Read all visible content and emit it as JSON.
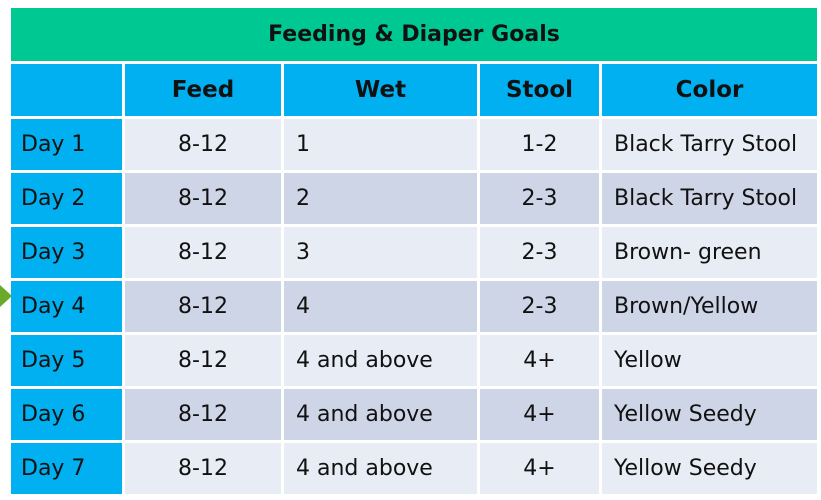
{
  "table": {
    "title": "Feeding & Diaper Goals",
    "headers": [
      "",
      "Feed",
      "Wet",
      "Stool",
      "Color"
    ],
    "rows": [
      {
        "day": "Day 1",
        "feed": "8-12",
        "wet": "1",
        "stool": "1-2",
        "color": "Black Tarry Stool"
      },
      {
        "day": "Day 2",
        "feed": "8-12",
        "wet": "2",
        "stool": "2-3",
        "color": "Black Tarry Stool"
      },
      {
        "day": "Day 3",
        "feed": "8-12",
        "wet": "3",
        "stool": "2-3",
        "color": "Brown- green"
      },
      {
        "day": "Day 4",
        "feed": "8-12",
        "wet": "4",
        "stool": "2-3",
        "color": "Brown/Yellow"
      },
      {
        "day": "Day 5",
        "feed": "8-12",
        "wet": "4 and above",
        "stool": "4+",
        "color": "Yellow"
      },
      {
        "day": "Day 6",
        "feed": "8-12",
        "wet": "4 and above",
        "stool": "4+",
        "color": "Yellow Seedy"
      },
      {
        "day": "Day 7",
        "feed": "8-12",
        "wet": "4 and above",
        "stool": "4+",
        "color": "Yellow Seedy"
      }
    ]
  },
  "colors": {
    "title_bg": "#00c893",
    "header_bg": "#00b0f0",
    "row_light": "#e8ecf4",
    "row_dark": "#ced5e7",
    "arrow": "#6aaa2a"
  }
}
